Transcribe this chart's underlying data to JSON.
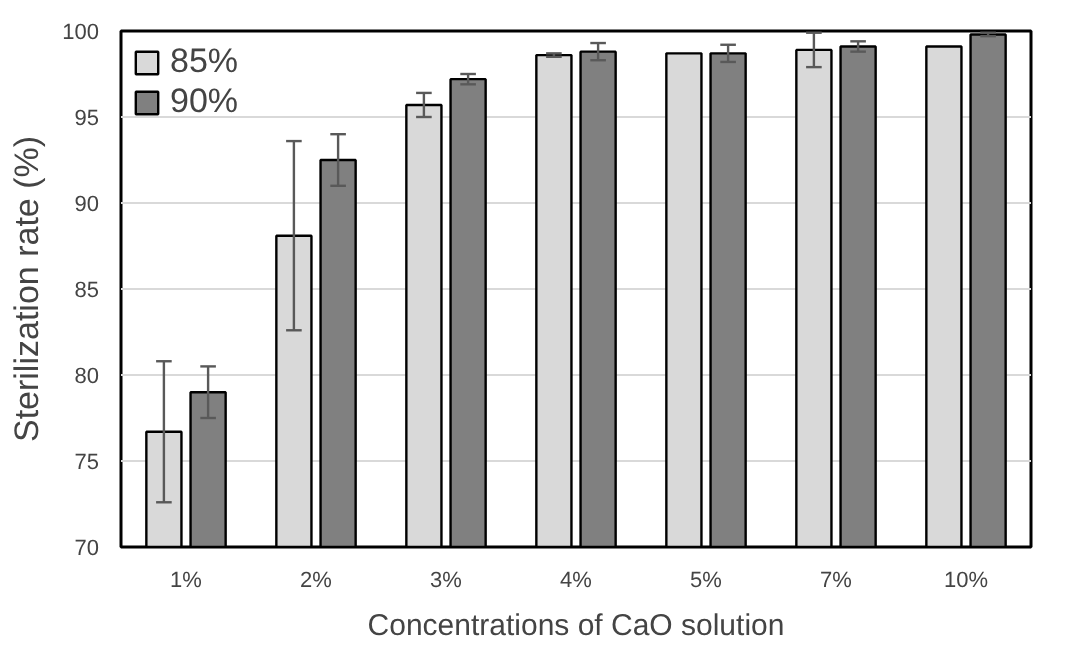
{
  "chart_data": {
    "type": "bar",
    "xlabel": "Concentrations of CaO solution",
    "ylabel": "Sterilization rate (%)",
    "categories": [
      "1%",
      "2%",
      "3%",
      "4%",
      "5%",
      "7%",
      "10%"
    ],
    "series": [
      {
        "name": "85%",
        "color": "#d9d9d9",
        "values": [
          76.7,
          88.1,
          95.7,
          98.6,
          98.7,
          98.9,
          99.1
        ],
        "errors": [
          4.1,
          5.5,
          0.7,
          0.1,
          null,
          1.0,
          null
        ]
      },
      {
        "name": "90%",
        "color": "#808080",
        "values": [
          79.0,
          92.5,
          97.2,
          98.8,
          98.7,
          99.1,
          99.8
        ],
        "errors": [
          1.5,
          1.5,
          0.3,
          0.5,
          0.5,
          0.3,
          0.1
        ]
      }
    ],
    "ylim": [
      70,
      100
    ],
    "yticks": [
      70,
      75,
      80,
      85,
      90,
      95,
      100
    ],
    "grid": "y",
    "legend": "top left"
  }
}
